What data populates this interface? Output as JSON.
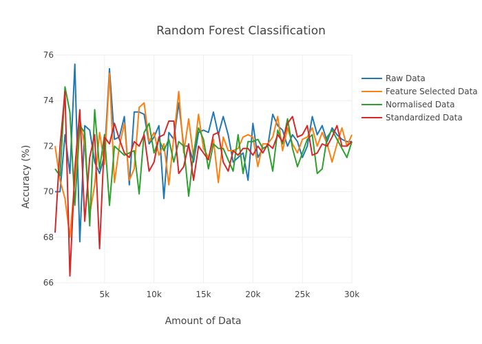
{
  "chart_data": {
    "type": "line",
    "title": "Random Forest Classification",
    "xlabel": "Amount of Data",
    "ylabel": "Accuracy (%)",
    "xlim": [
      0,
      30000
    ],
    "ylim": [
      66,
      76
    ],
    "x_ticks": [
      5000,
      10000,
      15000,
      20000,
      25000,
      30000
    ],
    "x_tick_labels": [
      "5k",
      "10k",
      "15k",
      "20k",
      "25k",
      "30k"
    ],
    "y_ticks": [
      66,
      68,
      70,
      72,
      74,
      76
    ],
    "y_tick_labels": [
      "66",
      "68",
      "70",
      "72",
      "74",
      "76"
    ],
    "grid": true,
    "legend_position": "right",
    "x": [
      0,
      500,
      1000,
      1500,
      2000,
      2500,
      3000,
      3500,
      4000,
      4500,
      5000,
      5500,
      6000,
      6500,
      7000,
      7500,
      8000,
      8500,
      9000,
      9500,
      10000,
      10500,
      11000,
      11500,
      12000,
      12500,
      13000,
      13500,
      14000,
      14500,
      15000,
      15500,
      16000,
      16500,
      17000,
      17500,
      18000,
      18500,
      19000,
      19500,
      20000,
      20500,
      21000,
      21500,
      22000,
      22500,
      23000,
      23500,
      24000,
      24500,
      25000,
      25500,
      26000,
      26500,
      27000,
      27500,
      28000,
      28500,
      29000,
      29500,
      30000
    ],
    "series": [
      {
        "name": "Raw Data",
        "color": "#1f77b4",
        "values": [
          70.0,
          70.0,
          72.5,
          70.8,
          75.6,
          67.8,
          72.9,
          72.7,
          71.3,
          70.8,
          71.6,
          75.4,
          72.3,
          72.4,
          73.3,
          70.3,
          73.5,
          73.5,
          73.4,
          72.1,
          72.4,
          72.9,
          69.7,
          72.6,
          72.3,
          73.9,
          72.0,
          72.0,
          71.3,
          72.6,
          72.7,
          72.6,
          73.5,
          72.5,
          73.3,
          72.5,
          71.3,
          71.5,
          71.7,
          70.5,
          73.0,
          71.5,
          71.9,
          72.0,
          73.4,
          72.9,
          72.7,
          72.0,
          72.5,
          72.2,
          71.5,
          72.0,
          73.3,
          72.5,
          72.9,
          72.2,
          72.8,
          72.5,
          72.3,
          72.2,
          72.2
        ]
      },
      {
        "name": "Feature Selected Data",
        "color": "#ff7f0e",
        "values": [
          72.0,
          70.5,
          69.7,
          68.0,
          70.5,
          73.2,
          72.0,
          69.0,
          70.3,
          72.6,
          71.2,
          75.2,
          70.4,
          72.0,
          73.0,
          70.5,
          71.0,
          73.7,
          73.9,
          72.2,
          72.6,
          71.6,
          72.1,
          70.3,
          72.4,
          74.4,
          71.7,
          73.2,
          71.5,
          73.4,
          71.9,
          71.5,
          72.3,
          70.4,
          72.4,
          71.8,
          71.8,
          71.9,
          72.4,
          72.5,
          72.4,
          71.1,
          72.1,
          72.1,
          72.4,
          73.3,
          71.8,
          72.8,
          72.1,
          71.7,
          72.3,
          72.4,
          72.8,
          72.0,
          72.6,
          72.1,
          71.3,
          72.1,
          72.8,
          72.0,
          72.5
        ]
      },
      {
        "name": "Normalised Data",
        "color": "#2ca02c",
        "values": [
          71.0,
          70.7,
          74.6,
          73.5,
          69.4,
          72.9,
          72.6,
          68.5,
          73.6,
          71.0,
          72.5,
          69.4,
          72.0,
          71.8,
          71.6,
          71.7,
          71.8,
          69.9,
          72.6,
          73.0,
          71.7,
          72.3,
          71.8,
          72.3,
          71.3,
          72.2,
          72.0,
          69.8,
          71.7,
          72.8,
          72.3,
          71.0,
          72.1,
          71.9,
          71.9,
          71.4,
          70.9,
          72.5,
          70.8,
          72.2,
          72.2,
          72.3,
          71.9,
          72.0,
          70.9,
          72.7,
          72.1,
          73.2,
          71.9,
          71.1,
          71.7,
          72.3,
          72.5,
          70.8,
          71.0,
          72.4,
          72.7,
          72.3,
          71.9,
          71.5,
          72.2
        ]
      },
      {
        "name": "Standardized Data",
        "color": "#d62728",
        "values": [
          68.2,
          72.0,
          74.4,
          66.3,
          71.0,
          73.6,
          68.7,
          71.5,
          72.5,
          67.5,
          72.4,
          72.1,
          73.0,
          72.3,
          71.7,
          71.5,
          72.2,
          72.0,
          72.5,
          70.9,
          71.3,
          72.4,
          72.5,
          73.1,
          73.1,
          70.8,
          71.1,
          72.1,
          70.5,
          72.0,
          71.7,
          71.4,
          72.5,
          72.6,
          71.3,
          70.9,
          71.8,
          71.6,
          71.9,
          71.9,
          71.6,
          72.0,
          71.7,
          72.1,
          71.9,
          72.5,
          72.2,
          73.0,
          73.3,
          72.4,
          72.5,
          72.9,
          71.6,
          71.7,
          72.1,
          72.0,
          72.4,
          72.9,
          72.0,
          72.0,
          72.2
        ]
      }
    ]
  }
}
